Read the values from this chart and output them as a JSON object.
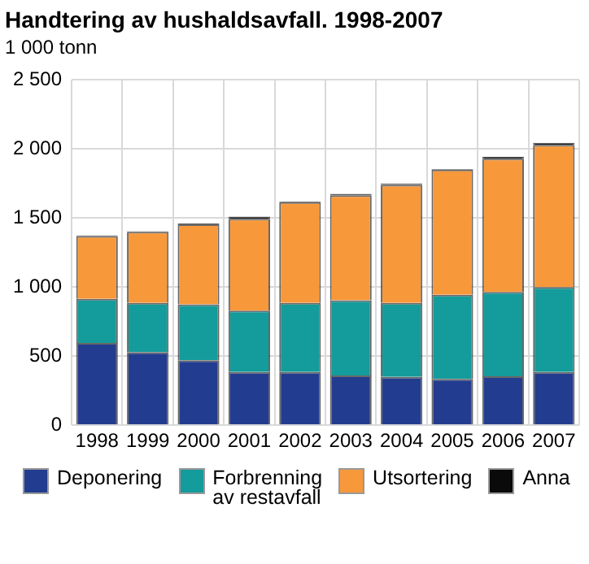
{
  "chart_data": {
    "type": "bar",
    "title": "Handtering av hushaldsavfall. 1998-2007",
    "ylabel": "1 000 tonn",
    "categories": [
      "1998",
      "1999",
      "2000",
      "2001",
      "2002",
      "2003",
      "2004",
      "2005",
      "2006",
      "2007"
    ],
    "stacked": true,
    "series": [
      {
        "name": "Deponering",
        "color": "#223c8f",
        "values": [
          595,
          530,
          470,
          385,
          385,
          360,
          350,
          335,
          355,
          385
        ]
      },
      {
        "name": "Forbrenning\nav restavfall",
        "color": "#149b9b",
        "values": [
          320,
          355,
          405,
          445,
          500,
          545,
          535,
          610,
          610,
          615
        ]
      },
      {
        "name": "Utsortering",
        "color": "#f7983a",
        "values": [
          455,
          515,
          580,
          665,
          730,
          760,
          855,
          905,
          965,
          1030
        ]
      },
      {
        "name": "Anna",
        "color": "#0a0a0a",
        "values": [
          5,
          5,
          5,
          15,
          5,
          10,
          10,
          5,
          15,
          15
        ]
      }
    ],
    "ylim": [
      0,
      2500
    ],
    "yticks": [
      0,
      {
        "value": 500,
        "label": "500"
      },
      {
        "value": 1000,
        "label": "1 000"
      },
      {
        "value": 1500,
        "label": "1 500"
      },
      {
        "value": 2000,
        "label": "2 000"
      },
      {
        "value": 2500,
        "label": "2 500"
      }
    ],
    "grid": true,
    "legend": "bottom"
  }
}
